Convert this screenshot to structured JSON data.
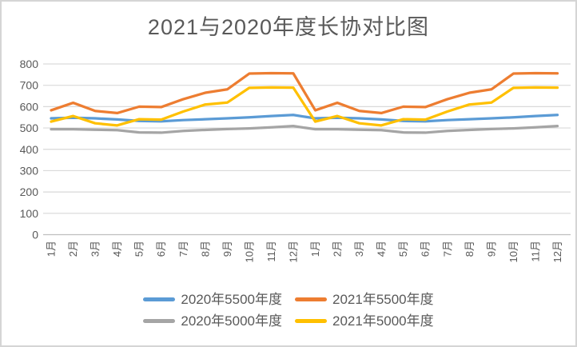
{
  "frame": {
    "background": "#ffffff",
    "border_color": "#d5d5d5"
  },
  "chart_data": {
    "type": "line",
    "title": "2021与2020年度长协对比图",
    "title_color": "#595959",
    "axis_text_color": "#595959",
    "gridline_color": "#d9d9d9",
    "zero_line_color": "#bfbfbf",
    "grid": true,
    "legend_position": "bottom",
    "ylim": [
      0,
      800
    ],
    "yticks": [
      0,
      100,
      200,
      300,
      400,
      500,
      600,
      700,
      800
    ],
    "categories": [
      "1月",
      "2月",
      "3月",
      "4月",
      "5月",
      "6月",
      "7月",
      "8月",
      "9月",
      "10月",
      "11月",
      "12月",
      "1月",
      "2月",
      "3月",
      "4月",
      "5月",
      "6月",
      "7月",
      "8月",
      "9月",
      "10月",
      "11月",
      "12月"
    ],
    "series": [
      {
        "name": "2020年5500年度",
        "color": "#5b9bd5",
        "values": [
          545,
          548,
          545,
          540,
          533,
          531,
          537,
          541,
          545,
          550,
          556,
          561,
          545,
          548,
          545,
          540,
          533,
          531,
          537,
          541,
          545,
          550,
          556,
          561
        ]
      },
      {
        "name": "2021年5500年度",
        "color": "#ed7d31",
        "values": [
          583,
          618,
          580,
          570,
          600,
          598,
          635,
          665,
          681,
          755,
          757,
          756,
          583,
          618,
          580,
          570,
          600,
          598,
          635,
          665,
          681,
          755,
          757,
          756
        ]
      },
      {
        "name": "2020年5000年度",
        "color": "#a5a5a5",
        "values": [
          494,
          494,
          492,
          490,
          479,
          478,
          486,
          491,
          495,
          498,
          503,
          509,
          494,
          494,
          492,
          490,
          479,
          478,
          486,
          491,
          495,
          498,
          503,
          509
        ]
      },
      {
        "name": "2021年5000年度",
        "color": "#ffc000",
        "values": [
          530,
          556,
          522,
          512,
          541,
          539,
          577,
          610,
          619,
          688,
          690,
          689,
          530,
          556,
          522,
          512,
          541,
          539,
          577,
          610,
          619,
          688,
          690,
          689
        ]
      }
    ]
  }
}
